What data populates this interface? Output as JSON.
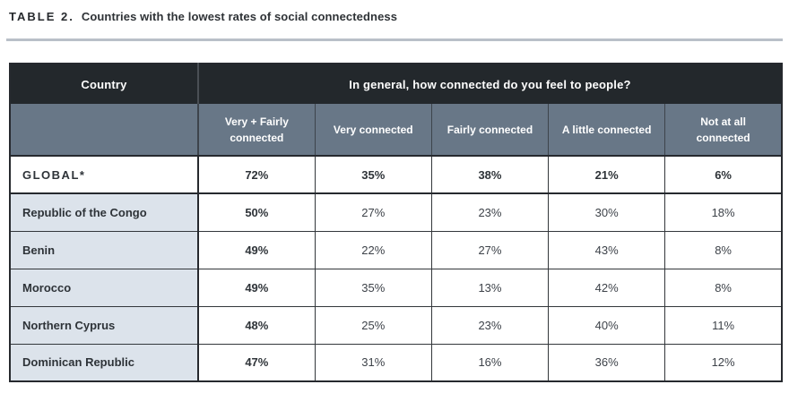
{
  "title": {
    "prefix": "TABLE 2.",
    "text": "Countries with the lowest rates of social connectedness"
  },
  "table": {
    "corner_header": "Country",
    "question_header": "In general, how connected do you feel to people?",
    "sub_headers": [
      "Very + Fairly connected",
      "Very connected",
      "Fairly connected",
      "A little connected",
      "Not at all connected"
    ],
    "rows": [
      {
        "country": "GLOBAL*",
        "values": [
          "72%",
          "35%",
          "38%",
          "21%",
          "6%"
        ]
      },
      {
        "country": "Republic of the Congo",
        "values": [
          "50%",
          "27%",
          "23%",
          "30%",
          "18%"
        ]
      },
      {
        "country": "Benin",
        "values": [
          "49%",
          "22%",
          "27%",
          "43%",
          "8%"
        ]
      },
      {
        "country": "Morocco",
        "values": [
          "49%",
          "35%",
          "13%",
          "42%",
          "8%"
        ]
      },
      {
        "country": "Northern Cyprus",
        "values": [
          "48%",
          "25%",
          "23%",
          "40%",
          "11%"
        ]
      },
      {
        "country": "Dominican Republic",
        "values": [
          "47%",
          "31%",
          "16%",
          "36%",
          "12%"
        ]
      }
    ]
  },
  "colors": {
    "header_dark": "#23282c",
    "header_slate": "#687787",
    "country_cell": "#dce3eb",
    "border_dark": "#26292e",
    "divider_gray": "#b9c0c8",
    "text_dark": "#2e3338"
  },
  "chart_data": {
    "type": "table",
    "title": "TABLE 2. Countries with the lowest rates of social connectedness",
    "question": "In general, how connected do you feel to people?",
    "columns": [
      "Country",
      "Very + Fairly connected",
      "Very connected",
      "Fairly connected",
      "A little connected",
      "Not at all connected"
    ],
    "rows": [
      [
        "GLOBAL*",
        72,
        35,
        38,
        21,
        6
      ],
      [
        "Republic of the Congo",
        50,
        27,
        23,
        30,
        18
      ],
      [
        "Benin",
        49,
        22,
        27,
        43,
        8
      ],
      [
        "Morocco",
        49,
        35,
        13,
        42,
        8
      ],
      [
        "Northern Cyprus",
        48,
        25,
        23,
        40,
        11
      ],
      [
        "Dominican Republic",
        47,
        31,
        16,
        36,
        12
      ]
    ],
    "units": "percent"
  }
}
